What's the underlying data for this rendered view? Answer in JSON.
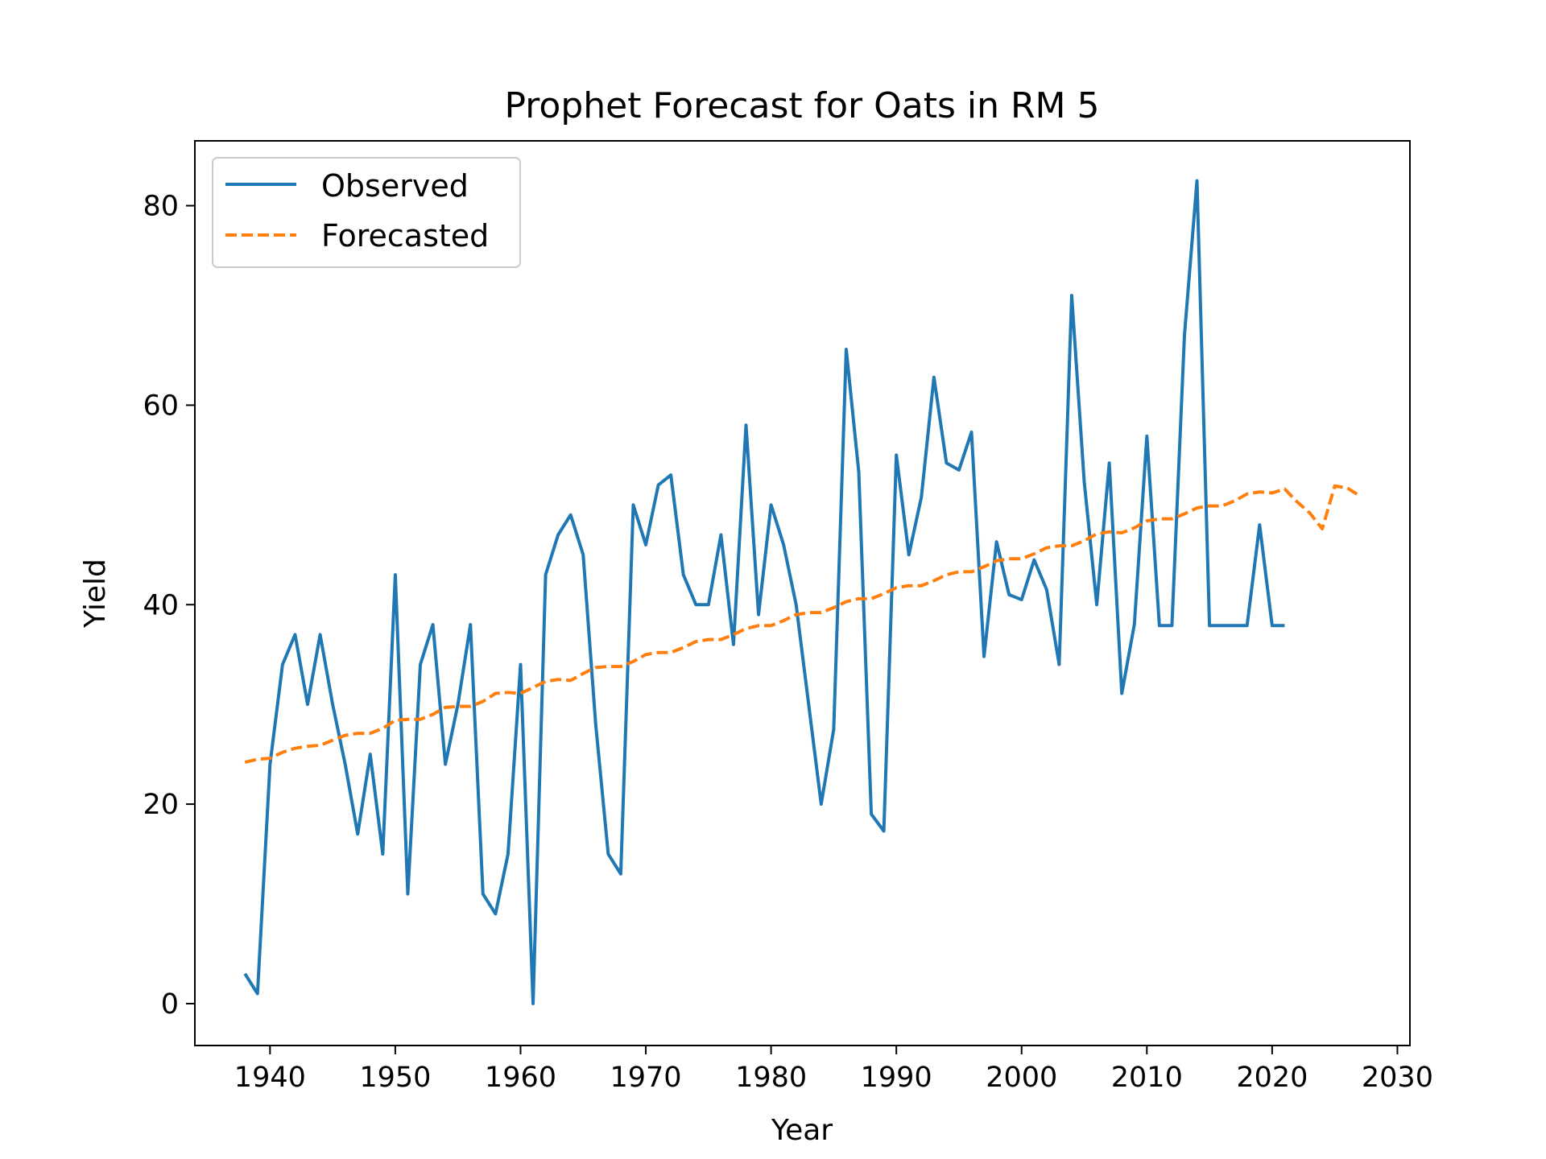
{
  "chart_data": {
    "type": "line",
    "title": "Prophet Forecast for Oats in RM 5",
    "xlabel": "Year",
    "ylabel": "Yield",
    "xlim": [
      1934,
      2031
    ],
    "ylim": [
      -4.2,
      86.5
    ],
    "xticks": [
      1940,
      1950,
      1960,
      1970,
      1980,
      1990,
      2000,
      2010,
      2020,
      2030
    ],
    "yticks": [
      0,
      20,
      40,
      60,
      80
    ],
    "grid": false,
    "legend_position": "top-left",
    "series": [
      {
        "name": "Observed",
        "color": "#1f77b4",
        "style": "solid",
        "x": [
          1938,
          1939,
          1940,
          1941,
          1942,
          1943,
          1944,
          1945,
          1946,
          1947,
          1948,
          1949,
          1950,
          1951,
          1952,
          1953,
          1954,
          1955,
          1956,
          1957,
          1958,
          1959,
          1960,
          1961,
          1962,
          1963,
          1964,
          1965,
          1966,
          1967,
          1968,
          1969,
          1970,
          1971,
          1972,
          1973,
          1974,
          1975,
          1976,
          1977,
          1978,
          1979,
          1980,
          1981,
          1982,
          1983,
          1984,
          1985,
          1986,
          1987,
          1988,
          1989,
          1990,
          1991,
          1992,
          1993,
          1994,
          1995,
          1996,
          1997,
          1998,
          1999,
          2000,
          2001,
          2002,
          2003,
          2004,
          2005,
          2006,
          2007,
          2008,
          2009,
          2010,
          2011,
          2012,
          2013,
          2014,
          2015,
          2016,
          2017,
          2018,
          2019,
          2020,
          2021
        ],
        "y": [
          3,
          1,
          24,
          34,
          37,
          30,
          37,
          30,
          24,
          17,
          25,
          15,
          43,
          11,
          34,
          38,
          24,
          30,
          38,
          11,
          9,
          15,
          34,
          0,
          43,
          47,
          49,
          45,
          28,
          15,
          13,
          50,
          46,
          52,
          53,
          43,
          40,
          40,
          47,
          36,
          58,
          39,
          50,
          46,
          40,
          30,
          20,
          27.5,
          65.6,
          53.3,
          19,
          17.3,
          55,
          45,
          50.8,
          62.8,
          54.2,
          53.5,
          57.3,
          34.8,
          46.3,
          41,
          40.5,
          44.5,
          41.5,
          34,
          71,
          52.3,
          40,
          54.2,
          31.1,
          38,
          56.9,
          37.9,
          37.9,
          67,
          82.5,
          37.9,
          37.9,
          37.9,
          37.9,
          48,
          37.9,
          37.9
        ]
      },
      {
        "name": "Forecasted",
        "color": "#ff7f0e",
        "style": "dashed",
        "x": [
          1938,
          1939,
          1940,
          1941,
          1942,
          1943,
          1944,
          1945,
          1946,
          1947,
          1948,
          1949,
          1950,
          1951,
          1952,
          1953,
          1954,
          1955,
          1956,
          1957,
          1958,
          1959,
          1960,
          1961,
          1962,
          1963,
          1964,
          1965,
          1966,
          1967,
          1968,
          1969,
          1970,
          1971,
          1972,
          1973,
          1974,
          1975,
          1976,
          1977,
          1978,
          1979,
          1980,
          1981,
          1982,
          1983,
          1984,
          1985,
          1986,
          1987,
          1988,
          1989,
          1990,
          1991,
          1992,
          1993,
          1994,
          1995,
          1996,
          1997,
          1998,
          1999,
          2000,
          2001,
          2002,
          2003,
          2004,
          2005,
          2006,
          2007,
          2008,
          2009,
          2010,
          2011,
          2012,
          2013,
          2014,
          2015,
          2016,
          2017,
          2018,
          2019,
          2020,
          2021,
          2022,
          2023,
          2024,
          2025,
          2026,
          2027
        ],
        "y": [
          24.2,
          24.5,
          24.6,
          25.2,
          25.6,
          25.8,
          25.9,
          26.4,
          26.9,
          27.1,
          27.1,
          27.6,
          28.4,
          28.5,
          28.5,
          29.0,
          29.7,
          29.8,
          29.8,
          30.3,
          31.1,
          31.2,
          31.1,
          31.7,
          32.3,
          32.5,
          32.4,
          33.1,
          33.7,
          33.8,
          33.8,
          34.3,
          35.0,
          35.2,
          35.2,
          35.7,
          36.3,
          36.5,
          36.5,
          37.0,
          37.6,
          37.9,
          37.9,
          38.4,
          39.0,
          39.2,
          39.2,
          39.7,
          40.3,
          40.6,
          40.6,
          41.1,
          41.7,
          41.9,
          41.9,
          42.4,
          43.0,
          43.3,
          43.3,
          43.8,
          44.4,
          44.6,
          44.6,
          45.1,
          45.7,
          45.9,
          45.9,
          46.4,
          47.1,
          47.3,
          47.2,
          47.7,
          48.4,
          48.6,
          48.6,
          49.1,
          49.7,
          49.9,
          49.9,
          50.4,
          51.1,
          51.3,
          51.2,
          51.6,
          50.3,
          49.2,
          47.6,
          51.9,
          51.7,
          50.9
        ]
      }
    ]
  }
}
